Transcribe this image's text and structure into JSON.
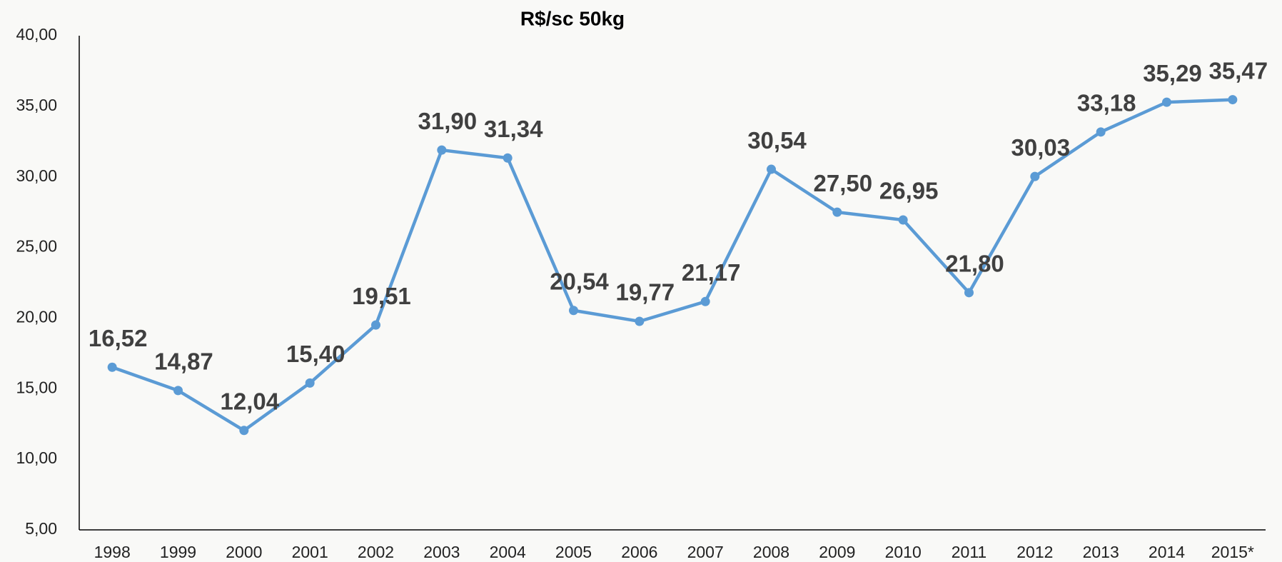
{
  "chart_data": {
    "type": "line",
    "title": "R$/sc 50kg",
    "categories": [
      "1998",
      "1999",
      "2000",
      "2001",
      "2002",
      "2003",
      "2004",
      "2005",
      "2006",
      "2007",
      "2008",
      "2009",
      "2010",
      "2011",
      "2012",
      "2013",
      "2014",
      "2015*"
    ],
    "values": [
      16.52,
      14.87,
      12.04,
      15.4,
      19.51,
      31.9,
      31.34,
      20.54,
      19.77,
      21.17,
      30.54,
      27.5,
      26.95,
      21.8,
      30.03,
      33.18,
      35.29,
      35.47
    ],
    "value_labels": [
      "16,52",
      "14,87",
      "12,04",
      "15,40",
      "19,51",
      "31,90",
      "31,34",
      "20,54",
      "19,77",
      "21,17",
      "30,54",
      "27,50",
      "26,95",
      "21,80",
      "30,03",
      "33,18",
      "35,29",
      "35,47"
    ],
    "color": "#5b9bd5",
    "ylim": [
      5,
      40
    ],
    "yticks": [
      {
        "value": 5,
        "label": "5,00"
      },
      {
        "value": 10,
        "label": "10,00"
      },
      {
        "value": 15,
        "label": "15,00"
      },
      {
        "value": 20,
        "label": "20,00"
      },
      {
        "value": 25,
        "label": "25,00"
      },
      {
        "value": 30,
        "label": "30,00"
      },
      {
        "value": 35,
        "label": "35,00"
      },
      {
        "value": 40,
        "label": "40,00"
      }
    ],
    "grid": false
  }
}
